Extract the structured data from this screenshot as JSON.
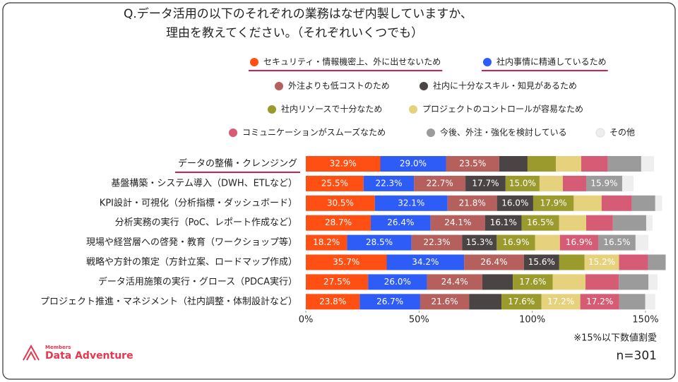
{
  "chart_data": {
    "type": "stacked-bar-horizontal",
    "title_lines": [
      "Q.データ活用の以下のそれぞれの業務はなぜ内製していますか、",
      "理由を教えてください。（それぞれいくつでも）"
    ],
    "categories": [
      "データの整備・クレンジング",
      "基盤構築・システム導入（DWH、ETLなど）",
      "KPI設計・可視化（分析指標・ダッシュボード）",
      "分析実務の実行（PoC、レポート作成など）",
      "現場や経営層への啓発・教育（ワークショップ等）",
      "戦略や方針の策定（方針立案、ロードマップ作成）",
      "データ活用施策の実行・グロース（PDCA実行）",
      "プロジェクト推進・マネジメント（社内調整・体制設計など）"
    ],
    "series": [
      {
        "name": "セキュリティ・情報機密上、外に出せないため",
        "color": "#ff4f13",
        "values": [
          32.9,
          25.5,
          30.5,
          28.7,
          18.2,
          35.7,
          27.5,
          23.8
        ],
        "value_labels": [
          "32.9%",
          "25.5%",
          "30.5%",
          "28.7%",
          "18.2%",
          "35.7%",
          "27.5%",
          "23.8%"
        ]
      },
      {
        "name": "社内事情に精通しているため",
        "color": "#2d5cf6",
        "values": [
          29.0,
          22.3,
          32.1,
          26.4,
          28.5,
          34.2,
          26.0,
          26.7
        ],
        "value_labels": [
          "29.0%",
          "22.3%",
          "32.1%",
          "26.4%",
          "28.5%",
          "34.2%",
          "26.0%",
          "26.7%"
        ]
      },
      {
        "name": "外注よりも低コストのため",
        "color": "#b5605c",
        "values": [
          23.5,
          22.7,
          21.8,
          24.1,
          22.3,
          26.4,
          24.4,
          21.6
        ],
        "value_labels": [
          "23.5%",
          "22.7%",
          "21.8%",
          "24.1%",
          "22.3%",
          "26.4%",
          "24.4%",
          "21.6%"
        ]
      },
      {
        "name": "社内に十分なスキル・知見があるため",
        "color": "#4a4444",
        "values": [
          12.5,
          17.7,
          16.0,
          16.1,
          15.3,
          15.6,
          13.5,
          14.3
        ],
        "value_labels": [
          null,
          "17.7%",
          "16.0%",
          "16.1%",
          "15.3%",
          "15.6%",
          null,
          null
        ]
      },
      {
        "name": "社内リソースで十分なため",
        "color": "#9b9a2c",
        "values": [
          12.5,
          15.0,
          17.9,
          16.5,
          16.9,
          11.2,
          17.6,
          17.6
        ],
        "value_labels": [
          null,
          "15.0%",
          "17.9%",
          "16.5%",
          "16.9%",
          null,
          "17.6%",
          "17.6%"
        ]
      },
      {
        "name": "プロジェクトのコントロールが容易なため",
        "color": "#e6d27c",
        "values": [
          11.2,
          10.3,
          12.3,
          12.0,
          11.0,
          15.2,
          14.5,
          17.2
        ],
        "value_labels": [
          null,
          null,
          null,
          null,
          null,
          "15.2%",
          null,
          "17.2%"
        ]
      },
      {
        "name": "コミュニケーションがスムーズなため",
        "color": "#d65b74",
        "values": [
          11.8,
          10.3,
          13.4,
          11.8,
          16.9,
          12.8,
          14.7,
          17.2
        ],
        "value_labels": [
          null,
          null,
          null,
          null,
          "16.9%",
          null,
          null,
          "17.2%"
        ]
      },
      {
        "name": "今後、外注・強化を検討している",
        "color": "#9b9b9b",
        "values": [
          14.7,
          15.9,
          10.3,
          14.7,
          16.5,
          7.8,
          13.1,
          11.5
        ],
        "value_labels": [
          null,
          "15.9%",
          null,
          null,
          "16.5%",
          null,
          null,
          null
        ]
      },
      {
        "name": "その他",
        "color": "#eeeeee",
        "values": [
          5.6,
          5.0,
          3.0,
          2.8,
          5.6,
          0.0,
          4.0,
          4.4
        ],
        "value_labels": [
          null,
          null,
          null,
          null,
          null,
          null,
          null,
          null
        ]
      }
    ],
    "xlim": [
      0,
      150
    ],
    "xticks": [
      {
        "value": 0,
        "label": "0%"
      },
      {
        "value": 50,
        "label": "50%"
      },
      {
        "value": 100,
        "label": "100%"
      },
      {
        "value": 150,
        "label": "150%"
      }
    ],
    "note": "※15%以下数値割愛",
    "sample": "n=301"
  },
  "logo": {
    "small": "Members",
    "name": "Data Adventure"
  }
}
